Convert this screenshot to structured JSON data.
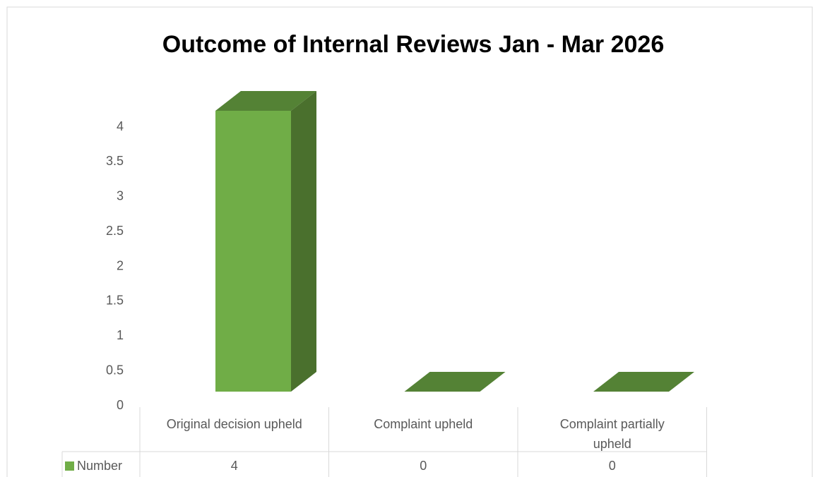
{
  "chart_data": {
    "type": "bar3d",
    "title": "Outcome of Internal Reviews Jan - Mar 2026",
    "categories": [
      "Original decision upheld",
      "Complaint upheld",
      "Complaint partially upheld"
    ],
    "series": [
      {
        "name": "Number",
        "color": "#70ad47",
        "values": [
          4,
          0,
          0
        ]
      }
    ],
    "ylim": [
      0,
      4
    ],
    "yticks": [
      0,
      0.5,
      1,
      1.5,
      2,
      2.5,
      3,
      3.5,
      4
    ],
    "grid": false,
    "data_table": true
  }
}
